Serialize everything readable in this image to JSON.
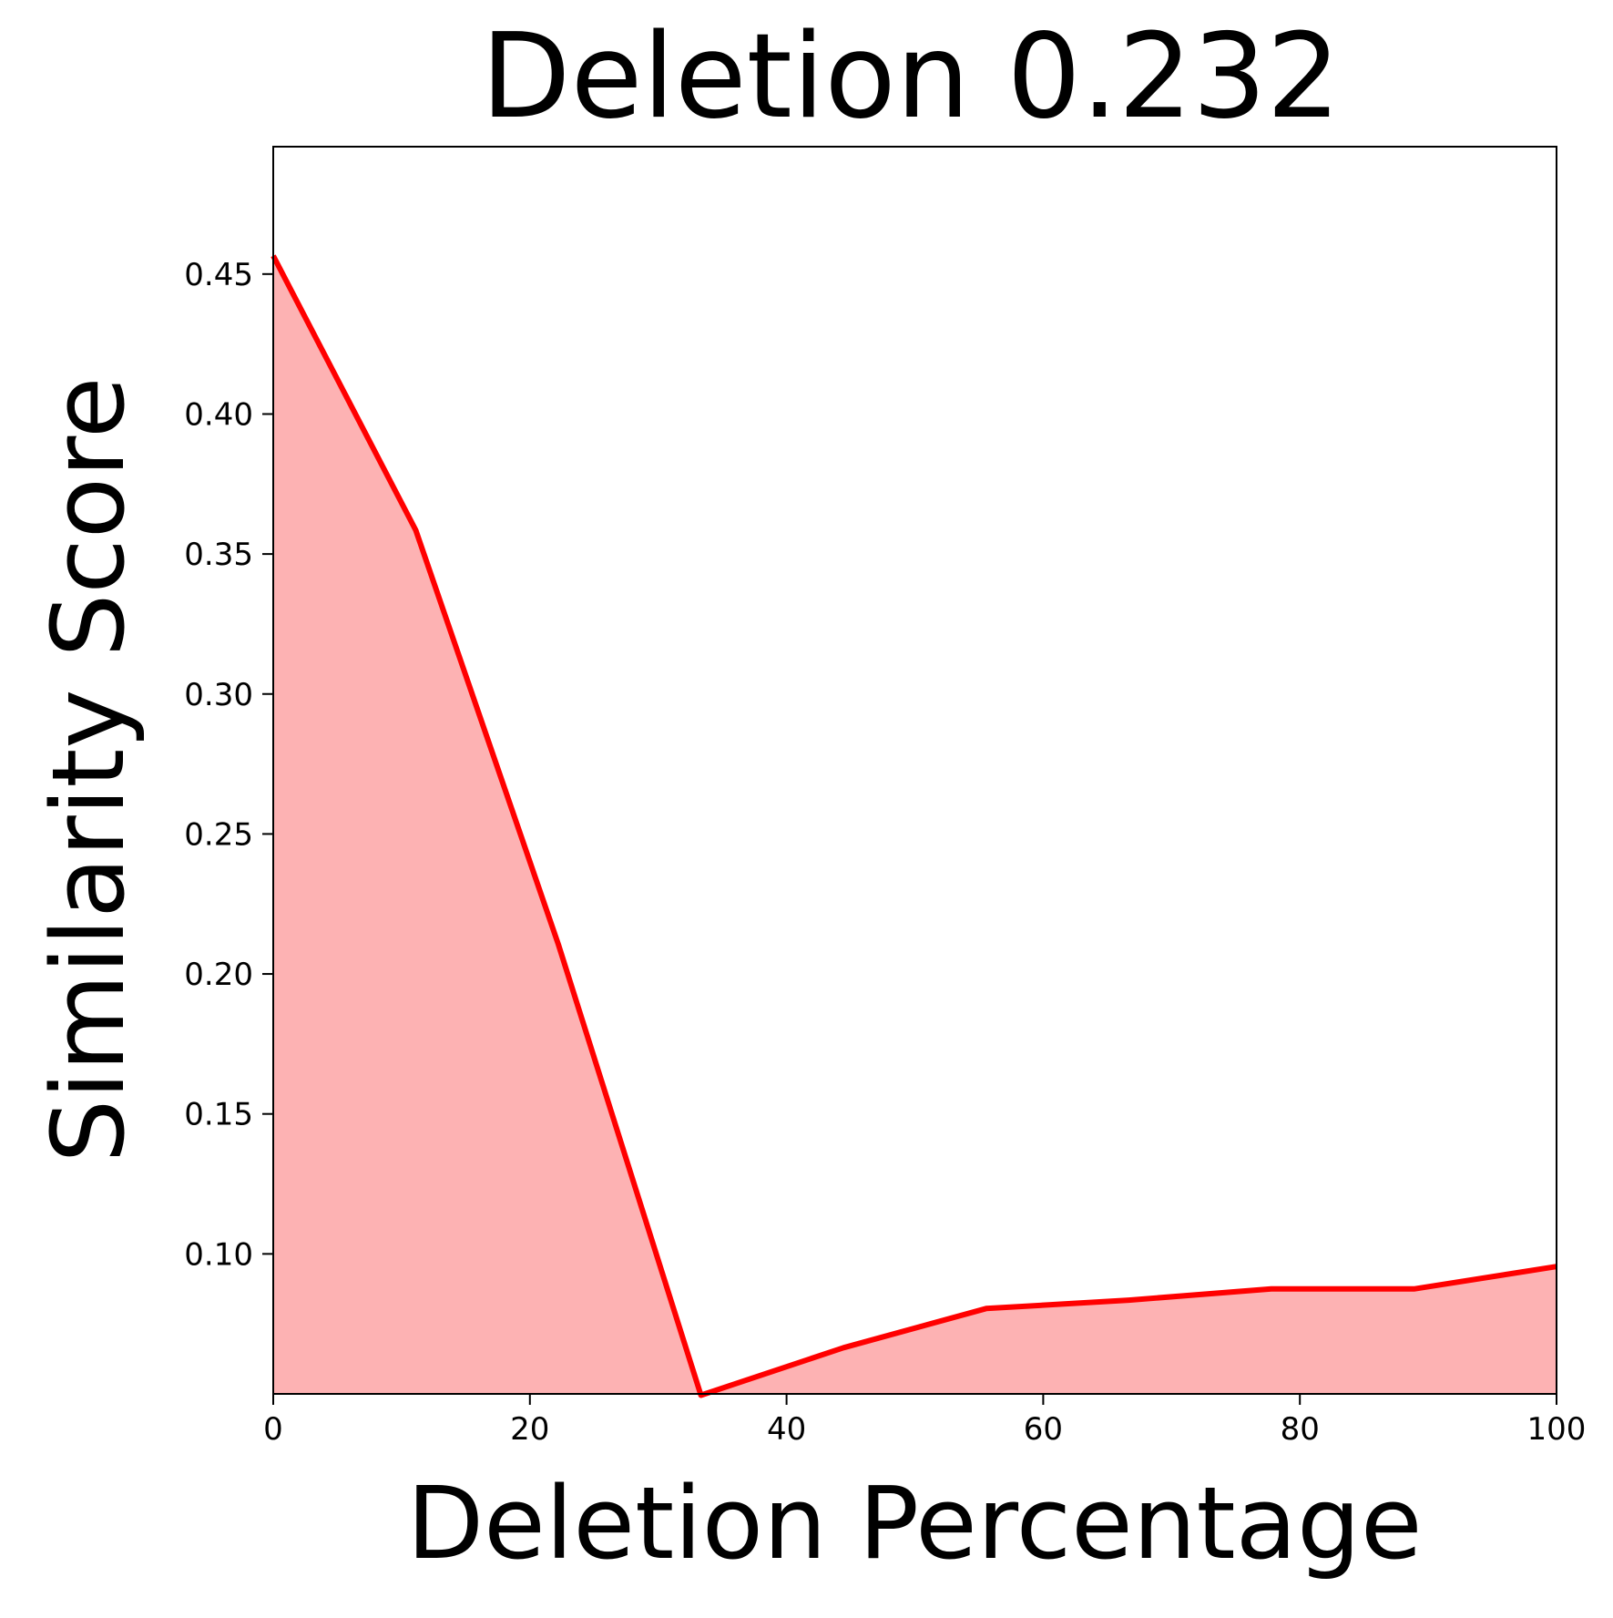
{
  "chart_data": {
    "type": "area",
    "title": "Deletion 0.232",
    "xlabel": "Deletion Percentage",
    "ylabel": "Similarity Score",
    "xlim": [
      0,
      100
    ],
    "ylim": [
      0.05,
      0.4955
    ],
    "xticks": [
      0,
      20,
      40,
      60,
      80,
      100
    ],
    "xtick_labels": [
      "0",
      "20",
      "40",
      "60",
      "80",
      "100"
    ],
    "yticks": [
      0.1,
      0.15,
      0.2,
      0.25,
      0.3,
      0.35,
      0.4,
      0.45
    ],
    "ytick_labels": [
      "0.10",
      "0.15",
      "0.20",
      "0.25",
      "0.30",
      "0.35",
      "0.40",
      "0.45"
    ],
    "grid": false,
    "series": [
      {
        "x": [
          0,
          11.11,
          22.22,
          33.33,
          44.44,
          55.56,
          66.67,
          77.78,
          88.89,
          100
        ],
        "y": [
          0.4565,
          0.3585,
          0.2105,
          0.0495,
          0.0665,
          0.0805,
          0.0835,
          0.0875,
          0.0875,
          0.0955
        ],
        "line_color": "#ff0000",
        "fill_color": "#fdb2b3"
      }
    ]
  }
}
